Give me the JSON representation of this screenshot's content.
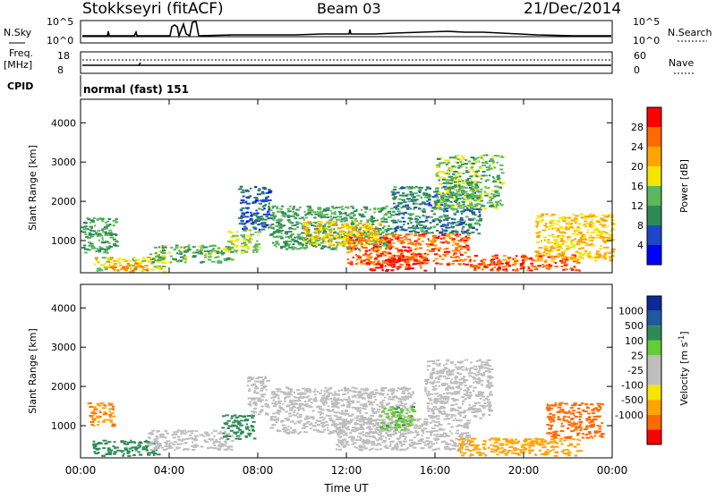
{
  "header": {
    "station": "Stokkseyri (fitACF)",
    "beam": "Beam 03",
    "date": "21/Dec/2014"
  },
  "top_panel": {
    "left_label": "N.Sky",
    "right_label": "N.Search",
    "left_ticks": [
      "10^5",
      "10^0"
    ],
    "right_ticks": [
      "10^5",
      "10^0"
    ]
  },
  "freq_panel": {
    "left_label_line1": "Freq.",
    "left_label_line2": "[MHz]",
    "right_label": "Nave",
    "left_ticks": [
      "18",
      "8"
    ],
    "right_ticks": [
      "60",
      "0"
    ]
  },
  "cpid_panel": {
    "label": "CPID",
    "text": "normal (fast) 151"
  },
  "colors": {
    "power_scale": [
      "#0000ff",
      "#1e46c8",
      "#2e8b57",
      "#5cb85c",
      "#f5e600",
      "#ffa500",
      "#ff6a00",
      "#ff0000"
    ],
    "velocity_scale": [
      "#0a2a9a",
      "#1e5aa0",
      "#2e8b57",
      "#66cc33",
      "#bebebe",
      "#bebebe",
      "#f5e600",
      "#ffa500",
      "#ff6a00",
      "#ff0000"
    ]
  },
  "chart_data": [
    {
      "type": "heatmap",
      "title": "",
      "ylabel": "Slant Range [km]",
      "xlabel": "",
      "y_ticks": [
        "1000",
        "2000",
        "3000",
        "4000"
      ],
      "x_ticks": [
        "00:00",
        "04:00",
        "08:00",
        "12:00",
        "16:00",
        "20:00",
        "00:00"
      ],
      "xlim": [
        0,
        24
      ],
      "ylim": [
        180,
        4600
      ],
      "colorbar": {
        "label": "Power [dB]",
        "ticks": [
          "4",
          "8",
          "12",
          "16",
          "20",
          "24",
          "28"
        ],
        "range": [
          0,
          30
        ]
      },
      "blobs": [
        {
          "t0": 0.0,
          "t1": 1.6,
          "r0": 700,
          "r1": 1600,
          "v": 12
        },
        {
          "t0": 0.6,
          "t1": 3.8,
          "r0": 220,
          "r1": 600,
          "v": 18
        },
        {
          "t0": 1.3,
          "t1": 3.0,
          "r0": 250,
          "r1": 450,
          "v": 24
        },
        {
          "t0": 3.0,
          "t1": 6.8,
          "r0": 450,
          "r1": 900,
          "v": 13
        },
        {
          "t0": 6.6,
          "t1": 8.0,
          "r0": 700,
          "r1": 1300,
          "v": 16
        },
        {
          "t0": 7.1,
          "t1": 8.5,
          "r0": 1300,
          "r1": 2400,
          "v": 7
        },
        {
          "t0": 8.5,
          "t1": 14.0,
          "r0": 800,
          "r1": 1900,
          "v": 12
        },
        {
          "t0": 10.0,
          "t1": 13.5,
          "r0": 900,
          "r1": 1500,
          "v": 20
        },
        {
          "t0": 12.0,
          "t1": 17.5,
          "r0": 400,
          "r1": 1200,
          "v": 26
        },
        {
          "t0": 13.0,
          "t1": 15.5,
          "r0": 250,
          "r1": 700,
          "v": 29
        },
        {
          "t0": 14.0,
          "t1": 18.0,
          "r0": 1200,
          "r1": 2400,
          "v": 10
        },
        {
          "t0": 16.0,
          "t1": 19.0,
          "r0": 1800,
          "r1": 3200,
          "v": 14
        },
        {
          "t0": 17.5,
          "t1": 22.5,
          "r0": 250,
          "r1": 650,
          "v": 27
        },
        {
          "t0": 20.5,
          "t1": 24.0,
          "r0": 500,
          "r1": 1700,
          "v": 20
        }
      ]
    },
    {
      "type": "heatmap",
      "title": "",
      "ylabel": "Slant Range [km]",
      "xlabel": "Time UT",
      "y_ticks": [
        "1000",
        "2000",
        "3000",
        "4000"
      ],
      "x_ticks": [
        "00:00",
        "04:00",
        "08:00",
        "12:00",
        "16:00",
        "20:00",
        "00:00"
      ],
      "xlim": [
        0,
        24
      ],
      "ylim": [
        180,
        4600
      ],
      "colorbar": {
        "label": "Velocity [m s",
        "label_superscript": "-1",
        "ticks": [
          "1000",
          "500",
          "100",
          "25",
          "-25",
          "-100",
          "-500",
          "-1000"
        ]
      },
      "blobs": [
        {
          "t0": 0.3,
          "t1": 1.5,
          "r0": 1000,
          "r1": 1600,
          "v": -500
        },
        {
          "t0": 0.5,
          "t1": 3.5,
          "r0": 250,
          "r1": 650,
          "v": 300
        },
        {
          "t0": 3.0,
          "t1": 6.8,
          "r0": 400,
          "r1": 900,
          "v": 10
        },
        {
          "t0": 6.3,
          "t1": 7.8,
          "r0": 650,
          "r1": 1300,
          "v": 200
        },
        {
          "t0": 7.5,
          "t1": 8.4,
          "r0": 1300,
          "r1": 2300,
          "v": 10
        },
        {
          "t0": 8.5,
          "t1": 15.0,
          "r0": 800,
          "r1": 2000,
          "v": 5
        },
        {
          "t0": 11.5,
          "t1": 17.5,
          "r0": 400,
          "r1": 1200,
          "v": 0
        },
        {
          "t0": 13.5,
          "t1": 15.0,
          "r0": 900,
          "r1": 1500,
          "v": 80
        },
        {
          "t0": 15.5,
          "t1": 18.5,
          "r0": 1200,
          "r1": 2700,
          "v": -5
        },
        {
          "t0": 17.0,
          "t1": 22.5,
          "r0": 250,
          "r1": 700,
          "v": -300
        },
        {
          "t0": 21.0,
          "t1": 23.5,
          "r0": 700,
          "r1": 1600,
          "v": -800
        }
      ]
    }
  ]
}
